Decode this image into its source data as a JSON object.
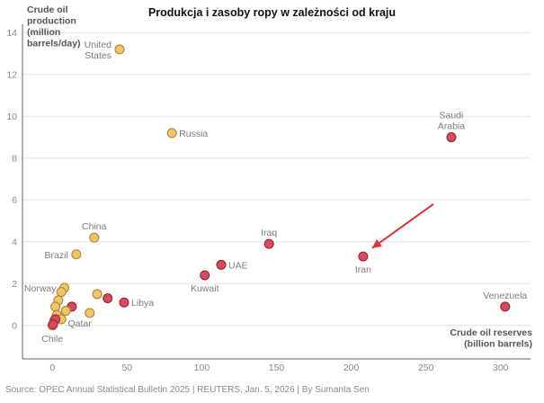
{
  "title": "Produkcja i zasoby ropy w zależności od kraju",
  "source": "Source: OPEC Annual Statistical Bulletin 2025 | REUTERS, Jan. 5, 2026 | By Sumanta Sen",
  "chart_data": {
    "type": "scatter",
    "title": "Produkcja i zasoby ropy w zależności od kraju",
    "ylabel_lines": [
      "Crude oil",
      "production",
      "(million",
      "barrels/day)"
    ],
    "xlabel_lines": [
      "Crude oil reserves",
      "(billion barrels)"
    ],
    "xlim": [
      -20,
      320
    ],
    "ylim": [
      -1.6,
      14.4
    ],
    "xticks": [
      0,
      50,
      100,
      150,
      200,
      250,
      300
    ],
    "yticks": [
      0,
      2,
      4,
      6,
      8,
      10,
      12,
      14
    ],
    "grid": "horizontal",
    "colors": {
      "non_opec": "#f0c468",
      "non_opec_edge": "#a58130",
      "opec": "#d84a5c",
      "opec_edge": "#8e2233",
      "arrow": "#e03030",
      "grid": "#e3e3e3",
      "axis": "#666666",
      "label": "#7a7a7a"
    },
    "points": [
      {
        "label": "United States",
        "label_lines": [
          "United",
          "States"
        ],
        "x": 45,
        "y": 13.2,
        "group": "non_opec",
        "labeled": true,
        "anchor": "left"
      },
      {
        "label": "Russia",
        "x": 80,
        "y": 9.2,
        "group": "non_opec",
        "labeled": true,
        "anchor": "right"
      },
      {
        "label": "Saudi Arabia",
        "label_lines": [
          "Saudi",
          "Arabia"
        ],
        "x": 267,
        "y": 9.0,
        "group": "opec",
        "labeled": true,
        "anchor": "above"
      },
      {
        "label": "China",
        "x": 28,
        "y": 4.2,
        "group": "non_opec",
        "labeled": true,
        "anchor": "above"
      },
      {
        "label": "Iraq",
        "x": 145,
        "y": 3.9,
        "group": "opec",
        "labeled": true,
        "anchor": "above"
      },
      {
        "label": "Brazil",
        "x": 16,
        "y": 3.4,
        "group": "non_opec",
        "labeled": true,
        "anchor": "left"
      },
      {
        "label": "Iran",
        "x": 208,
        "y": 3.3,
        "group": "opec",
        "labeled": true,
        "anchor": "below"
      },
      {
        "label": "UAE",
        "x": 113,
        "y": 2.9,
        "group": "opec",
        "labeled": true,
        "anchor": "right"
      },
      {
        "label": "Kuwait",
        "x": 102,
        "y": 2.4,
        "group": "opec",
        "labeled": true,
        "anchor": "below"
      },
      {
        "label": "Norway",
        "x": 8,
        "y": 1.8,
        "group": "non_opec",
        "labeled": true,
        "anchor": "left"
      },
      {
        "label": "Libya",
        "x": 48,
        "y": 1.1,
        "group": "opec",
        "labeled": true,
        "anchor": "right"
      },
      {
        "label": "Venezuela",
        "x": 303,
        "y": 0.9,
        "group": "opec",
        "labeled": true,
        "anchor": "above"
      },
      {
        "label": "Qatar",
        "x": 25,
        "y": 0.6,
        "group": "non_opec",
        "labeled": true,
        "anchor": "below-left"
      },
      {
        "label": "Chile",
        "x": 0,
        "y": 0.0,
        "group": "non_opec",
        "labeled": true,
        "anchor": "below"
      },
      {
        "label": "",
        "x": 30,
        "y": 1.5,
        "group": "non_opec",
        "labeled": false
      },
      {
        "label": "",
        "x": 37,
        "y": 1.3,
        "group": "opec",
        "labeled": false
      },
      {
        "label": "",
        "x": 13,
        "y": 0.9,
        "group": "opec",
        "labeled": false
      },
      {
        "label": "",
        "x": 6,
        "y": 1.6,
        "group": "non_opec",
        "labeled": false
      },
      {
        "label": "",
        "x": 4,
        "y": 1.2,
        "group": "non_opec",
        "labeled": false
      },
      {
        "label": "",
        "x": 2,
        "y": 0.9,
        "group": "non_opec",
        "labeled": false
      },
      {
        "label": "",
        "x": 9,
        "y": 0.7,
        "group": "non_opec",
        "labeled": false
      },
      {
        "label": "",
        "x": 3,
        "y": 0.5,
        "group": "non_opec",
        "labeled": false
      },
      {
        "label": "",
        "x": 6,
        "y": 0.3,
        "group": "non_opec",
        "labeled": false
      },
      {
        "label": "",
        "x": 1,
        "y": 0.2,
        "group": "non_opec",
        "labeled": false
      },
      {
        "label": "",
        "x": 2,
        "y": 0.3,
        "group": "opec",
        "labeled": false
      },
      {
        "label": "",
        "x": 0.5,
        "y": 0.05,
        "group": "opec",
        "labeled": false
      }
    ],
    "annotation": {
      "type": "arrow",
      "from": [
        255,
        5.8
      ],
      "to": [
        214,
        3.7
      ]
    }
  }
}
